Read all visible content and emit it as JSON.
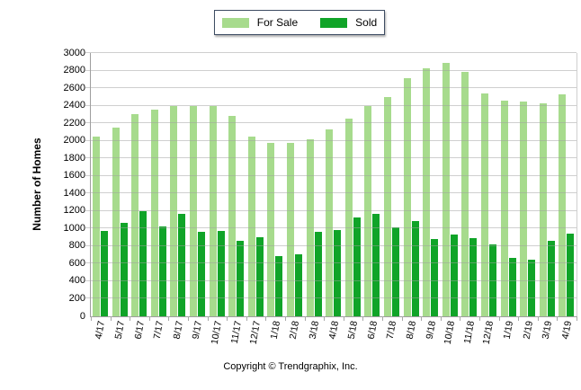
{
  "legend": {
    "for_sale_label": "For Sale",
    "sold_label": "Sold"
  },
  "y_axis": {
    "title": "Number of Homes"
  },
  "footer": {
    "copyright": "Copyright © Trendgraphix, Inc."
  },
  "colors": {
    "for_sale": "#A7DB8D",
    "sold": "#10A428",
    "gridline": "#CFCFCF",
    "legend_border": "#3E4D63",
    "axis_line": "#9E9E9E",
    "text": "#000000",
    "background": "#FFFFFF"
  },
  "chart_data": {
    "type": "bar",
    "title": "",
    "xlabel": "",
    "ylabel": "Number of Homes",
    "ylim": [
      0,
      3000
    ],
    "ytick_step": 200,
    "yticks": [
      0,
      200,
      400,
      600,
      800,
      1000,
      1200,
      1400,
      1600,
      1800,
      2000,
      2200,
      2400,
      2600,
      2800,
      3000
    ],
    "grid": true,
    "legend_position": "top-center",
    "categories": [
      "4/17",
      "5/17",
      "6/17",
      "7/17",
      "8/17",
      "9/17",
      "10/17",
      "11/17",
      "12/17",
      "1/18",
      "2/18",
      "3/18",
      "4/18",
      "5/18",
      "6/18",
      "7/18",
      "8/18",
      "9/18",
      "10/18",
      "11/18",
      "12/18",
      "1/19",
      "2/19",
      "3/19",
      "4/19"
    ],
    "series": [
      {
        "name": "For Sale",
        "values": [
          2050,
          2150,
          2300,
          2350,
          2400,
          2400,
          2400,
          2280,
          2050,
          1980,
          1980,
          2020,
          2130,
          2250,
          2400,
          2500,
          2710,
          2830,
          2890,
          2790,
          2540,
          2460,
          2450,
          2430,
          2530
        ]
      },
      {
        "name": "Sold",
        "values": [
          970,
          1070,
          1200,
          1020,
          1170,
          960,
          970,
          860,
          900,
          690,
          710,
          960,
          980,
          1130,
          1170,
          1010,
          1090,
          880,
          930,
          890,
          820,
          670,
          650,
          860,
          940
        ]
      }
    ]
  }
}
